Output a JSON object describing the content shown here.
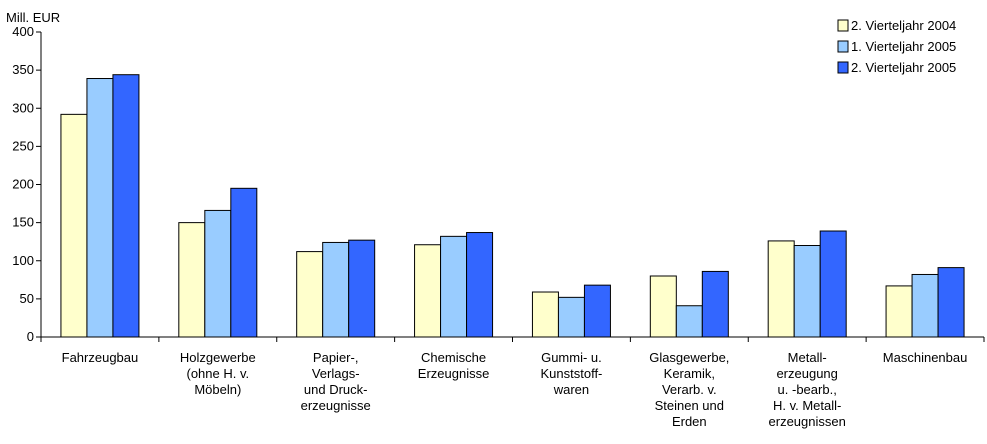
{
  "chart_data": {
    "type": "bar",
    "ylabel": "Mill. EUR",
    "ylim": [
      0,
      400
    ],
    "yticks": [
      0,
      50,
      100,
      150,
      200,
      250,
      300,
      350,
      400
    ],
    "grid": false,
    "legend_position": "top-right",
    "categories": [
      [
        "Fahrzeugbau"
      ],
      [
        "Holzgewerbe",
        "(ohne H. v.",
        "Möbeln)"
      ],
      [
        "Papier-,",
        "Verlags-",
        "und Druck-",
        "erzeugnisse"
      ],
      [
        "Chemische",
        "Erzeugnisse"
      ],
      [
        "Gummi- u.",
        "Kunststoff-",
        "waren"
      ],
      [
        "Glasgewerbe,",
        "Keramik,",
        "Verarb. v.",
        "Steinen und",
        "Erden"
      ],
      [
        "Metall-",
        "erzeugung",
        "u. -bearb.,",
        "H. v. Metall-",
        "erzeugnissen"
      ],
      [
        "Maschinenbau"
      ]
    ],
    "series": [
      {
        "name": "2. Vierteljahr 2004",
        "color": "#FFFFCC",
        "values": [
          292,
          150,
          112,
          121,
          59,
          80,
          126,
          67
        ]
      },
      {
        "name": "1. Vierteljahr 2005",
        "color": "#99CCFF",
        "values": [
          339,
          166,
          124,
          132,
          52,
          41,
          120,
          82
        ]
      },
      {
        "name": "2. Vierteljahr 2005",
        "color": "#3366FF",
        "values": [
          344,
          195,
          127,
          137,
          68,
          86,
          139,
          91
        ]
      }
    ]
  }
}
